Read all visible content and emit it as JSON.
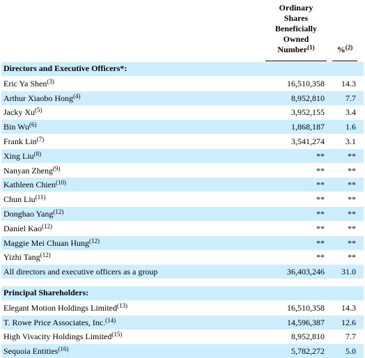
{
  "header": {
    "number_heading_lines": [
      "Ordinary",
      "Shares",
      "Beneficially",
      "Owned",
      "Number"
    ],
    "number_note": "(1)",
    "percent_heading": "%",
    "percent_note": "(2)"
  },
  "sections": [
    {
      "title": "Directors and Executive Officers*:",
      "rows": [
        {
          "name": "Eric Ya Shen",
          "note": "(3)",
          "shares": "16,510,358",
          "percent": "14.3"
        },
        {
          "name": "Arthur Xiaobo Hong",
          "note": "(4)",
          "shares": "8,952,810",
          "percent": "7.7"
        },
        {
          "name": "Jacky Xu",
          "note": "(5)",
          "shares": "3,952,155",
          "percent": "3.4"
        },
        {
          "name": "Bin Wu",
          "note": "(6)",
          "shares": "1,868,187",
          "percent": "1.6"
        },
        {
          "name": "Frank Lin",
          "note": "(7)",
          "shares": "3,541,274",
          "percent": "3.1"
        },
        {
          "name": "Xing Liu",
          "note": "(8)",
          "shares": "**",
          "percent": "**"
        },
        {
          "name": "Nanyan Zheng",
          "note": "(9)",
          "shares": "**",
          "percent": "**"
        },
        {
          "name": "Kathleen Chien",
          "note": "(10)",
          "shares": "**",
          "percent": "**"
        },
        {
          "name": "Chun Liu",
          "note": "(11)",
          "shares": "**",
          "percent": "**"
        },
        {
          "name": "Donghao Yang",
          "note": "(12)",
          "shares": "**",
          "percent": "**"
        },
        {
          "name": "Daniel Kao",
          "note": "(12)",
          "shares": "**",
          "percent": "**"
        },
        {
          "name": "Maggie Mei Chuan Hung",
          "note": "(12)",
          "shares": "**",
          "percent": "**"
        },
        {
          "name": "Yizhi Tang",
          "note": "(12)",
          "shares": "**",
          "percent": "**"
        },
        {
          "name": "All directors and executive officers as a group",
          "shares": "36,403,246",
          "percent": "31.0"
        }
      ]
    },
    {
      "title": "Principal Shareholders:",
      "rows": [
        {
          "name": "Elegant Motion Holdings Limited",
          "note": "(13)",
          "shares": "16,510,358",
          "percent": "14.3"
        },
        {
          "name": "T. Rowe Price Associates, Inc.",
          "note": "(14)",
          "shares": "14,596,387",
          "percent": "12.6"
        },
        {
          "name": "High Vivacity Holdings Limited",
          "note": "(15)",
          "shares": "8,952,810",
          "percent": "7.7"
        },
        {
          "name": "Sequoia Entities",
          "note": "(16)",
          "shares": "5,782,272",
          "percent": "5.0"
        }
      ]
    }
  ]
}
